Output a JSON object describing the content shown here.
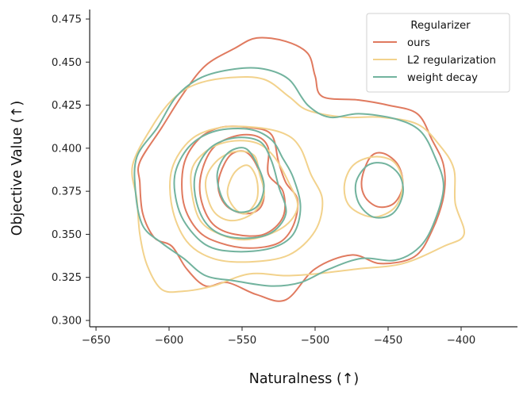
{
  "chart_data": {
    "type": "kde-contour",
    "xlabel": "Naturalness (↑)",
    "ylabel": "Objective Value (↑)",
    "xlim": [
      -665,
      -365
    ],
    "ylim": [
      0.295,
      0.48
    ],
    "xticks": [
      -650,
      -600,
      -550,
      -500,
      -450,
      -400
    ],
    "xtick_labels": [
      "−650",
      "−600",
      "−550",
      "−500",
      "−450",
      "−400"
    ],
    "yticks": [
      0.3,
      0.325,
      0.35,
      0.375,
      0.4,
      0.425,
      0.45,
      0.475
    ],
    "ytick_labels": [
      "0.300",
      "0.325",
      "0.350",
      "0.375",
      "0.400",
      "0.425",
      "0.450",
      "0.475"
    ],
    "legend": {
      "title": "Regularizer",
      "position": "top-right",
      "entries": [
        "ours",
        "L2 regularization",
        "weight decay"
      ]
    },
    "series": [
      {
        "name": "ours",
        "color": "#e07a5f",
        "contours": [
          [
            [
              -620,
              0.392
            ],
            [
              -605,
              0.412
            ],
            [
              -590,
              0.432
            ],
            [
              -575,
              0.448
            ],
            [
              -555,
              0.458
            ],
            [
              -540,
              0.464
            ],
            [
              -520,
              0.462
            ],
            [
              -505,
              0.455
            ],
            [
              -500,
              0.442
            ],
            [
              -495,
              0.43
            ],
            [
              -470,
              0.428
            ],
            [
              -450,
              0.425
            ],
            [
              -430,
              0.42
            ],
            [
              -420,
              0.405
            ],
            [
              -412,
              0.39
            ],
            [
              -412,
              0.372
            ],
            [
              -420,
              0.352
            ],
            [
              -432,
              0.337
            ],
            [
              -455,
              0.333
            ],
            [
              -475,
              0.338
            ],
            [
              -500,
              0.33
            ],
            [
              -520,
              0.312
            ],
            [
              -540,
              0.315
            ],
            [
              -560,
              0.322
            ],
            [
              -575,
              0.32
            ],
            [
              -588,
              0.33
            ],
            [
              -598,
              0.343
            ],
            [
              -610,
              0.348
            ],
            [
              -618,
              0.362
            ],
            [
              -620,
              0.38
            ]
          ],
          [
            [
              -590,
              0.39
            ],
            [
              -580,
              0.405
            ],
            [
              -565,
              0.412
            ],
            [
              -545,
              0.412
            ],
            [
              -530,
              0.408
            ],
            [
              -525,
              0.392
            ],
            [
              -520,
              0.38
            ],
            [
              -512,
              0.37
            ],
            [
              -515,
              0.355
            ],
            [
              -525,
              0.345
            ],
            [
              -545,
              0.342
            ],
            [
              -565,
              0.345
            ],
            [
              -580,
              0.352
            ],
            [
              -590,
              0.368
            ]
          ],
          [
            [
              -578,
              0.385
            ],
            [
              -570,
              0.4
            ],
            [
              -555,
              0.407
            ],
            [
              -540,
              0.407
            ],
            [
              -532,
              0.4
            ],
            [
              -532,
              0.385
            ],
            [
              -522,
              0.375
            ],
            [
              -522,
              0.36
            ],
            [
              -535,
              0.35
            ],
            [
              -555,
              0.35
            ],
            [
              -570,
              0.356
            ],
            [
              -578,
              0.37
            ]
          ],
          [
            [
              -565,
              0.385
            ],
            [
              -558,
              0.396
            ],
            [
              -548,
              0.398
            ],
            [
              -540,
              0.39
            ],
            [
              -535,
              0.375
            ],
            [
              -538,
              0.365
            ],
            [
              -548,
              0.362
            ],
            [
              -560,
              0.366
            ],
            [
              -566,
              0.375
            ]
          ],
          [
            [
              -468,
              0.382
            ],
            [
              -462,
              0.395
            ],
            [
              -453,
              0.397
            ],
            [
              -443,
              0.39
            ],
            [
              -440,
              0.378
            ],
            [
              -446,
              0.368
            ],
            [
              -457,
              0.366
            ],
            [
              -466,
              0.372
            ]
          ]
        ]
      },
      {
        "name": "L2 regularization",
        "color": "#f2d28c",
        "contours": [
          [
            [
              -625,
              0.39
            ],
            [
              -612,
              0.412
            ],
            [
              -598,
              0.428
            ],
            [
              -582,
              0.437
            ],
            [
              -558,
              0.441
            ],
            [
              -535,
              0.44
            ],
            [
              -518,
              0.43
            ],
            [
              -505,
              0.422
            ],
            [
              -480,
              0.418
            ],
            [
              -455,
              0.418
            ],
            [
              -430,
              0.414
            ],
            [
              -415,
              0.402
            ],
            [
              -405,
              0.388
            ],
            [
              -404,
              0.368
            ],
            [
              -398,
              0.35
            ],
            [
              -412,
              0.343
            ],
            [
              -440,
              0.333
            ],
            [
              -470,
              0.33
            ],
            [
              -500,
              0.327
            ],
            [
              -520,
              0.326
            ],
            [
              -545,
              0.327
            ],
            [
              -570,
              0.32
            ],
            [
              -590,
              0.317
            ],
            [
              -605,
              0.318
            ],
            [
              -615,
              0.332
            ],
            [
              -620,
              0.35
            ],
            [
              -622,
              0.37
            ]
          ],
          [
            [
              -598,
              0.388
            ],
            [
              -585,
              0.405
            ],
            [
              -565,
              0.412
            ],
            [
              -540,
              0.412
            ],
            [
              -520,
              0.408
            ],
            [
              -510,
              0.4
            ],
            [
              -503,
              0.385
            ],
            [
              -495,
              0.37
            ],
            [
              -500,
              0.352
            ],
            [
              -518,
              0.338
            ],
            [
              -545,
              0.334
            ],
            [
              -570,
              0.336
            ],
            [
              -588,
              0.346
            ],
            [
              -598,
              0.366
            ]
          ],
          [
            [
              -585,
              0.385
            ],
            [
              -575,
              0.398
            ],
            [
              -558,
              0.404
            ],
            [
              -540,
              0.403
            ],
            [
              -528,
              0.395
            ],
            [
              -518,
              0.38
            ],
            [
              -512,
              0.366
            ],
            [
              -522,
              0.354
            ],
            [
              -545,
              0.347
            ],
            [
              -565,
              0.35
            ],
            [
              -580,
              0.36
            ]
          ],
          [
            [
              -575,
              0.38
            ],
            [
              -568,
              0.392
            ],
            [
              -555,
              0.398
            ],
            [
              -542,
              0.396
            ],
            [
              -538,
              0.385
            ],
            [
              -535,
              0.373
            ],
            [
              -543,
              0.362
            ],
            [
              -558,
              0.358
            ],
            [
              -570,
              0.364
            ]
          ],
          [
            [
              -560,
              0.375
            ],
            [
              -555,
              0.386
            ],
            [
              -546,
              0.39
            ],
            [
              -540,
              0.382
            ],
            [
              -540,
              0.37
            ],
            [
              -548,
              0.362
            ],
            [
              -556,
              0.366
            ]
          ],
          [
            [
              -480,
              0.378
            ],
            [
              -474,
              0.39
            ],
            [
              -460,
              0.395
            ],
            [
              -446,
              0.392
            ],
            [
              -440,
              0.38
            ],
            [
              -445,
              0.366
            ],
            [
              -460,
              0.36
            ],
            [
              -476,
              0.366
            ]
          ]
        ]
      },
      {
        "name": "weight decay",
        "color": "#72b39e",
        "contours": [
          [
            [
              -622,
              0.395
            ],
            [
              -608,
              0.412
            ],
            [
              -595,
              0.43
            ],
            [
              -578,
              0.441
            ],
            [
              -555,
              0.446
            ],
            [
              -535,
              0.446
            ],
            [
              -518,
              0.44
            ],
            [
              -505,
              0.425
            ],
            [
              -490,
              0.418
            ],
            [
              -470,
              0.42
            ],
            [
              -445,
              0.417
            ],
            [
              -428,
              0.41
            ],
            [
              -418,
              0.395
            ],
            [
              -412,
              0.378
            ],
            [
              -418,
              0.358
            ],
            [
              -428,
              0.343
            ],
            [
              -445,
              0.335
            ],
            [
              -468,
              0.336
            ],
            [
              -490,
              0.33
            ],
            [
              -510,
              0.322
            ],
            [
              -530,
              0.32
            ],
            [
              -555,
              0.323
            ],
            [
              -575,
              0.326
            ],
            [
              -590,
              0.336
            ],
            [
              -605,
              0.345
            ],
            [
              -618,
              0.355
            ],
            [
              -623,
              0.375
            ]
          ],
          [
            [
              -595,
              0.388
            ],
            [
              -585,
              0.402
            ],
            [
              -568,
              0.41
            ],
            [
              -545,
              0.411
            ],
            [
              -530,
              0.405
            ],
            [
              -522,
              0.394
            ],
            [
              -515,
              0.383
            ],
            [
              -510,
              0.366
            ],
            [
              -515,
              0.35
            ],
            [
              -530,
              0.342
            ],
            [
              -555,
              0.34
            ],
            [
              -575,
              0.344
            ],
            [
              -590,
              0.358
            ],
            [
              -596,
              0.374
            ]
          ],
          [
            [
              -582,
              0.385
            ],
            [
              -572,
              0.4
            ],
            [
              -555,
              0.406
            ],
            [
              -538,
              0.404
            ],
            [
              -530,
              0.393
            ],
            [
              -525,
              0.378
            ],
            [
              -520,
              0.362
            ],
            [
              -532,
              0.35
            ],
            [
              -555,
              0.348
            ],
            [
              -572,
              0.354
            ],
            [
              -581,
              0.368
            ]
          ],
          [
            [
              -567,
              0.385
            ],
            [
              -560,
              0.397
            ],
            [
              -548,
              0.4
            ],
            [
              -540,
              0.391
            ],
            [
              -535,
              0.378
            ],
            [
              -540,
              0.366
            ],
            [
              -553,
              0.363
            ],
            [
              -563,
              0.37
            ]
          ],
          [
            [
              -472,
              0.38
            ],
            [
              -464,
              0.39
            ],
            [
              -452,
              0.391
            ],
            [
              -442,
              0.384
            ],
            [
              -440,
              0.373
            ],
            [
              -447,
              0.362
            ],
            [
              -460,
              0.36
            ],
            [
              -470,
              0.368
            ]
          ]
        ]
      }
    ]
  }
}
